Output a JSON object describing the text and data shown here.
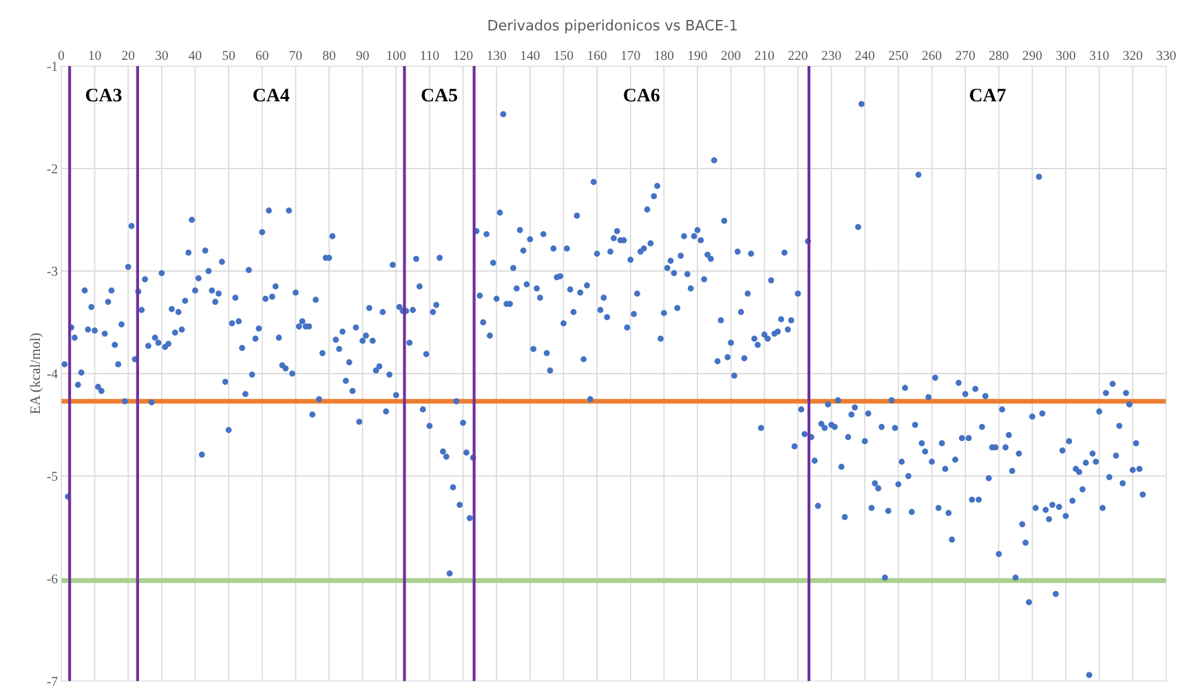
{
  "chart_data": {
    "type": "scatter",
    "title": "Derivados piperidonicos vs BACE-1",
    "ylabel": "EA (kcal/mol)",
    "x": [
      1,
      2,
      3,
      4,
      5,
      6,
      7,
      8,
      9,
      10,
      11,
      12,
      13,
      14,
      15,
      16,
      17,
      18,
      19,
      20,
      21,
      22,
      23,
      24,
      25,
      26,
      27,
      28,
      29,
      30,
      31,
      32,
      33,
      34,
      35,
      36,
      37,
      38,
      39,
      40,
      41,
      42,
      43,
      44,
      45,
      46,
      47,
      48,
      49,
      50,
      51,
      52,
      53,
      54,
      55,
      56,
      57,
      58,
      59,
      60,
      61,
      62,
      63,
      64,
      65,
      66,
      67,
      68,
      69,
      70,
      71,
      72,
      73,
      74,
      75,
      76,
      77,
      78,
      79,
      80,
      81,
      82,
      83,
      84,
      85,
      86,
      87,
      88,
      89,
      90,
      91,
      92,
      93,
      94,
      95,
      96,
      97,
      98,
      99,
      100,
      101,
      102,
      103,
      104,
      105,
      106,
      107,
      108,
      109,
      110,
      111,
      112,
      113,
      114,
      115,
      116,
      117,
      118,
      119,
      120,
      121,
      122,
      123,
      124,
      125,
      126,
      127,
      128,
      129,
      130,
      131,
      132,
      133,
      134,
      135,
      136,
      137,
      138,
      139,
      140,
      141,
      142,
      143,
      144,
      145,
      146,
      147,
      148,
      149,
      150,
      151,
      152,
      153,
      154,
      155,
      156,
      157,
      158,
      159,
      160,
      161,
      162,
      163,
      164,
      165,
      166,
      167,
      168,
      169,
      170,
      171,
      172,
      173,
      174,
      175,
      176,
      177,
      178,
      179,
      180,
      181,
      182,
      183,
      184,
      185,
      186,
      187,
      188,
      189,
      190,
      191,
      192,
      193,
      194,
      195,
      196,
      197,
      198,
      199,
      200,
      201,
      202,
      203,
      204,
      205,
      206,
      207,
      208,
      209,
      210,
      211,
      212,
      213,
      214,
      215,
      216,
      217,
      218,
      219,
      220,
      221,
      222,
      223,
      224,
      225,
      226,
      227,
      228,
      229,
      230,
      231,
      232,
      233,
      234,
      235,
      236,
      237,
      238,
      239,
      240,
      241,
      242,
      243,
      244,
      245,
      246,
      247,
      248,
      249,
      250,
      251,
      252,
      253,
      254,
      255,
      256,
      257,
      258,
      259,
      260,
      261,
      262,
      263,
      264,
      265,
      266,
      267,
      268,
      269,
      270,
      271,
      272,
      273,
      274,
      275,
      276,
      277,
      278,
      279,
      280,
      281,
      282,
      283,
      284,
      285,
      286,
      287,
      288,
      289,
      290,
      291,
      292,
      293,
      294,
      295,
      296,
      297,
      298,
      299,
      300,
      301,
      302,
      303,
      304,
      305,
      306,
      307,
      308,
      309,
      310,
      311,
      312,
      313,
      314,
      315,
      316,
      317,
      318,
      319,
      320,
      321,
      322,
      323
    ],
    "series": [
      {
        "color": "#4472c4",
        "values": [
          -3.91,
          -5.2,
          -3.55,
          -3.65,
          -4.11,
          -3.99,
          -3.19,
          -3.57,
          -3.35,
          -3.58,
          -4.13,
          -4.17,
          -3.61,
          -3.3,
          -3.19,
          -3.72,
          -3.91,
          -3.52,
          -4.27,
          -2.96,
          -2.56,
          -3.86,
          -3.2,
          -3.38,
          -3.08,
          -3.73,
          -4.28,
          -3.65,
          -3.7,
          -3.02,
          -3.74,
          -3.71,
          -3.37,
          -3.6,
          -3.4,
          -3.57,
          -3.29,
          -2.82,
          -2.5,
          -3.19,
          -3.07,
          -4.79,
          -2.8,
          -3.0,
          -3.19,
          -3.3,
          -3.22,
          -2.91,
          -4.08,
          -4.55,
          -3.51,
          -3.26,
          -3.49,
          -3.75,
          -4.2,
          -2.99,
          -4.01,
          -3.66,
          -3.56,
          -2.62,
          -3.27,
          -2.41,
          -3.25,
          -3.15,
          -3.65,
          -3.92,
          -3.95,
          -2.41,
          -4.0,
          -3.21,
          -3.54,
          -3.49,
          -3.54,
          -3.54,
          -4.4,
          -3.28,
          -4.25,
          -3.8,
          -2.87,
          -2.87,
          -2.66,
          -3.67,
          -3.76,
          -3.59,
          -4.07,
          -3.89,
          -4.17,
          -3.55,
          -4.47,
          -3.68,
          -3.63,
          -3.36,
          -3.68,
          -3.97,
          -3.93,
          -3.4,
          -4.37,
          -4.01,
          -2.94,
          -4.21,
          -3.35,
          -3.39,
          -3.39,
          -3.7,
          -3.38,
          -2.88,
          -3.15,
          -4.35,
          -3.81,
          -4.51,
          -3.4,
          -3.33,
          -2.87,
          -4.76,
          -4.81,
          -5.95,
          -5.11,
          -4.27,
          -5.28,
          -4.48,
          -4.77,
          -5.41,
          -4.82,
          -2.61,
          -3.24,
          -3.5,
          -2.64,
          -3.63,
          -2.92,
          -3.27,
          -2.43,
          -1.47,
          -3.32,
          -3.32,
          -2.97,
          -3.17,
          -2.6,
          -2.8,
          -3.13,
          -2.69,
          -3.76,
          -3.17,
          -3.26,
          -2.64,
          -3.8,
          -3.97,
          -2.78,
          -3.06,
          -3.05,
          -3.51,
          -2.78,
          -3.18,
          -3.4,
          -2.46,
          -3.21,
          -3.86,
          -3.14,
          -4.25,
          -2.13,
          -2.83,
          -3.38,
          -3.26,
          -3.45,
          -2.81,
          -2.68,
          -2.61,
          -2.7,
          -2.7,
          -3.55,
          -2.89,
          -3.42,
          -3.22,
          -2.81,
          -2.78,
          -2.4,
          -2.73,
          -2.27,
          -2.17,
          -3.66,
          -3.41,
          -2.97,
          -2.9,
          -3.02,
          -3.36,
          -2.85,
          -2.66,
          -3.03,
          -3.17,
          -2.66,
          -2.6,
          -2.7,
          -3.08,
          -2.84,
          -2.88,
          -1.92,
          -3.88,
          -3.48,
          -2.51,
          -3.84,
          -3.7,
          -4.02,
          -2.81,
          -3.4,
          -3.85,
          -3.22,
          -2.83,
          -3.66,
          -3.72,
          -4.53,
          -3.62,
          -3.66,
          -3.09,
          -3.61,
          -3.59,
          -3.47,
          -2.82,
          -3.57,
          -3.48,
          -4.71,
          -3.22,
          -4.35,
          -4.59,
          -2.71,
          -4.62,
          -4.85,
          -5.29,
          -4.49,
          -4.53,
          -4.3,
          -4.5,
          -4.52,
          -4.26,
          -4.91,
          -5.4,
          -4.62,
          -4.4,
          -4.33,
          -2.57,
          -1.37,
          -4.66,
          -4.39,
          -5.31,
          -5.07,
          -5.12,
          -4.52,
          -5.99,
          -5.34,
          -4.26,
          -4.53,
          -5.08,
          -4.86,
          -4.14,
          -5.0,
          -5.35,
          -4.5,
          -2.06,
          -4.68,
          -4.76,
          -4.23,
          -4.86,
          -4.04,
          -5.31,
          -4.68,
          -4.93,
          -5.36,
          -5.62,
          -4.84,
          -4.09,
          -4.63,
          -4.2,
          -4.63,
          -5.23,
          -4.15,
          -5.23,
          -4.52,
          -4.22,
          -5.02,
          -4.72,
          -4.72,
          -5.76,
          -4.35,
          -4.72,
          -4.6,
          -4.95,
          -5.99,
          -4.78,
          -5.47,
          -5.65,
          -6.23,
          -4.42,
          -5.31,
          -2.08,
          -4.39,
          -5.33,
          -5.42,
          -5.28,
          -6.15,
          -5.3,
          -4.75,
          -5.39,
          -4.66,
          -5.24,
          -4.93,
          -4.96,
          -5.13,
          -4.87,
          -6.94,
          -4.78,
          -4.86,
          -4.37,
          -5.31,
          -4.19,
          -5.01,
          -4.1,
          -4.8,
          -4.51,
          -5.07,
          -4.19,
          -4.3,
          -4.94,
          -4.68,
          -4.93,
          -5.18
        ]
      }
    ],
    "xlim": [
      0,
      330
    ],
    "xticks": [
      0,
      10,
      20,
      30,
      40,
      50,
      60,
      70,
      80,
      90,
      100,
      110,
      120,
      130,
      140,
      150,
      160,
      170,
      180,
      190,
      200,
      210,
      220,
      230,
      240,
      250,
      260,
      270,
      280,
      290,
      300,
      310,
      320,
      330
    ],
    "ylim": [
      -7,
      -1
    ],
    "yticks": [
      -7,
      -6,
      -5,
      -4,
      -3,
      -2,
      -1
    ],
    "grid": true,
    "marker": "circle",
    "ref_lines": [
      {
        "axis": "y",
        "value": -4.27,
        "color": "#ed7d31"
      },
      {
        "axis": "y",
        "value": -6.02,
        "color": "#a9d18e"
      },
      {
        "axis": "x",
        "value": 2.5,
        "color": "#7030a0"
      },
      {
        "axis": "x",
        "value": 22.8,
        "color": "#7030a0"
      },
      {
        "axis": "x",
        "value": 102.5,
        "color": "#7030a0"
      },
      {
        "axis": "x",
        "value": 123.3,
        "color": "#7030a0"
      },
      {
        "axis": "x",
        "value": 223.3,
        "color": "#7030a0"
      }
    ],
    "annotations": [
      "CA3",
      "CA4",
      "CA5",
      "CA6",
      "CA7"
    ]
  }
}
